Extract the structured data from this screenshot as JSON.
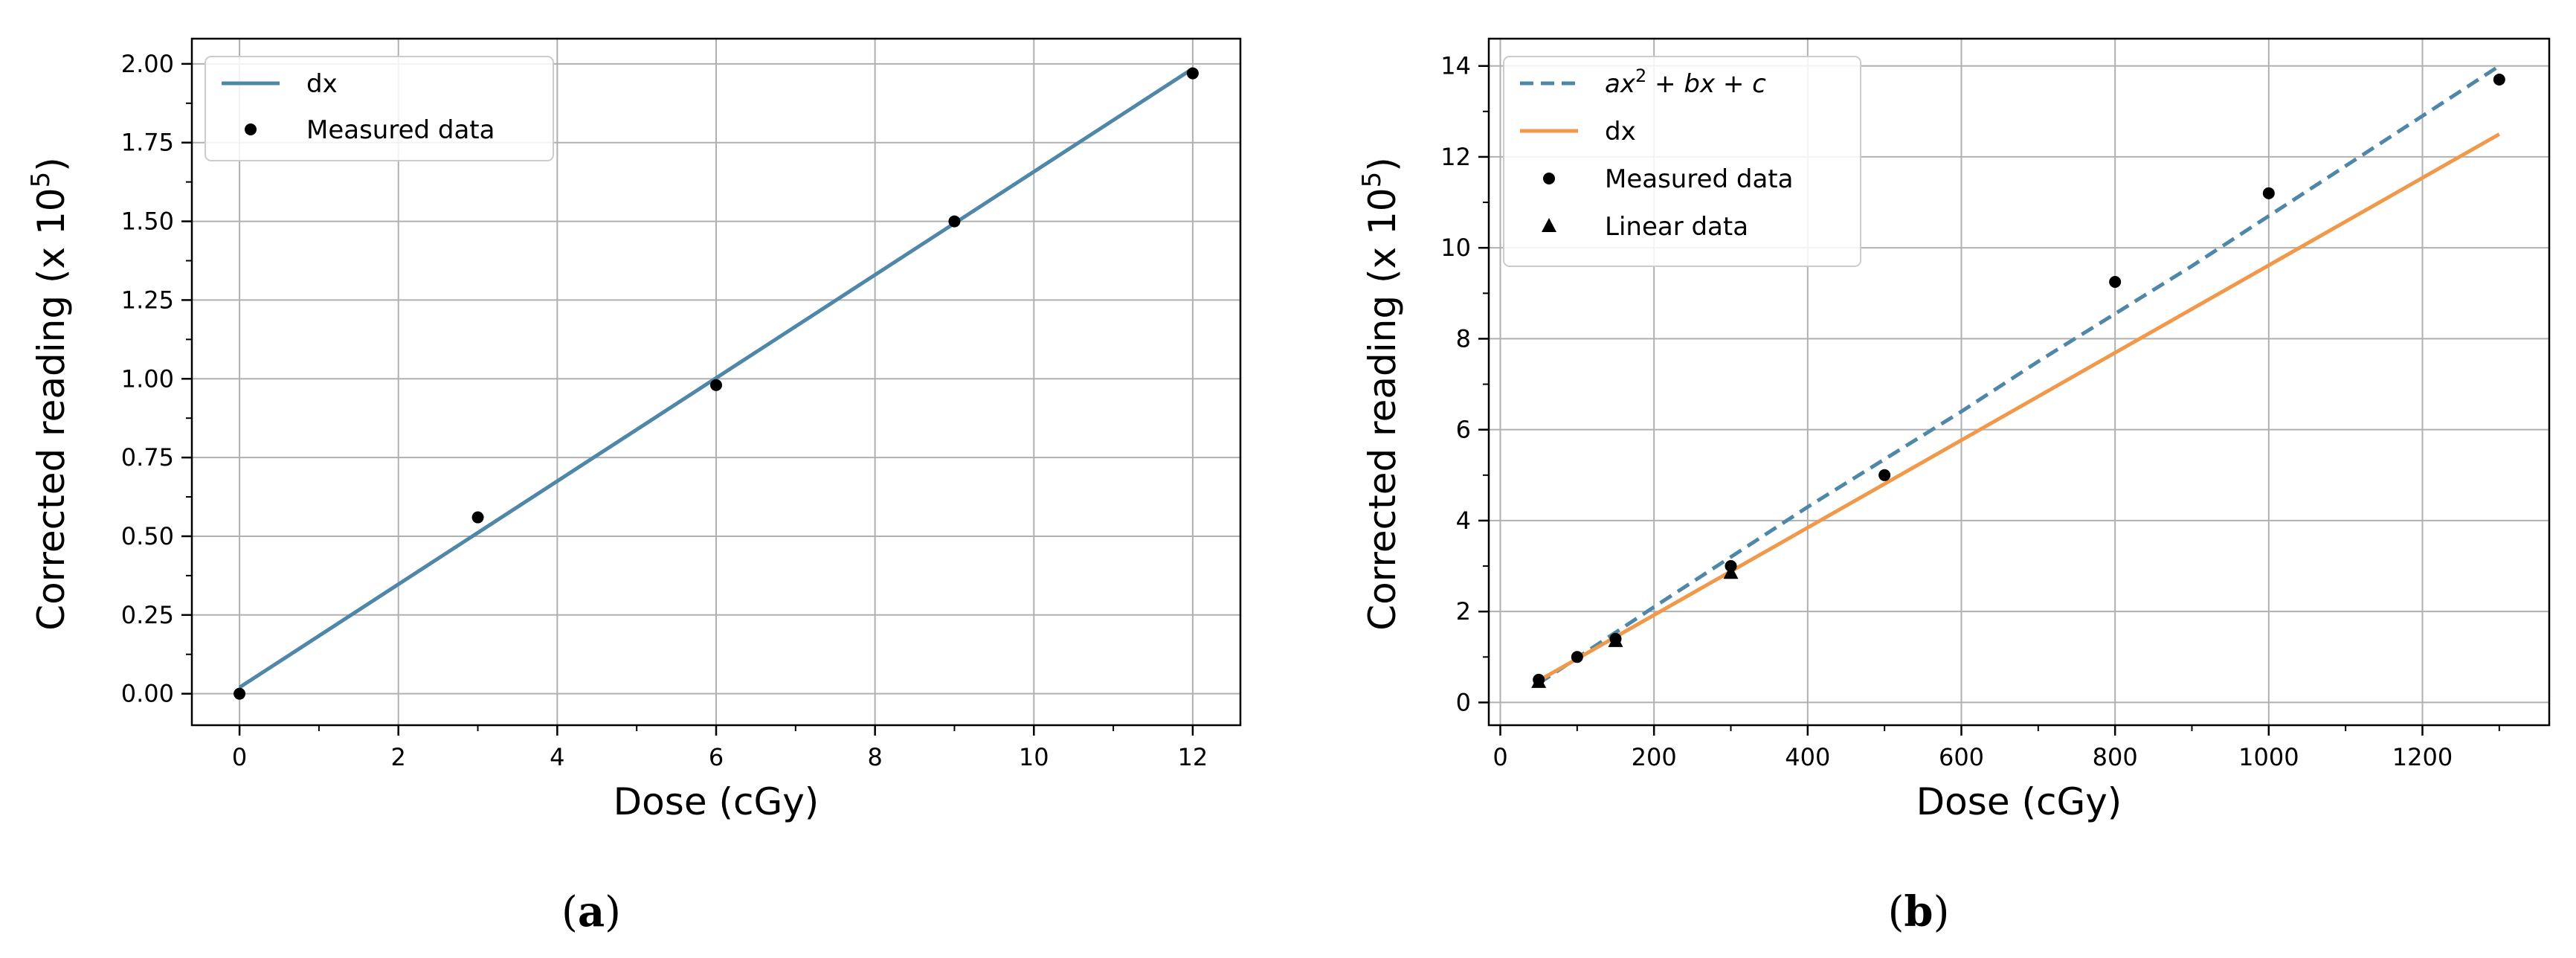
{
  "chart_data": [
    {
      "panel": "(a)",
      "type": "scatter",
      "xlabel": "Dose (cGy)",
      "ylabel": "Corrected reading (x 10",
      "ylabel_exp": "5",
      "ylabel_close": ")",
      "xlim": [
        -0.6,
        12.6
      ],
      "ylim": [
        -0.1,
        2.08
      ],
      "xticks": [
        0,
        2,
        4,
        6,
        8,
        10,
        12
      ],
      "xtick_labels": [
        "0",
        "2",
        "4",
        "6",
        "8",
        "10",
        "12"
      ],
      "yticks": [
        0,
        0.25,
        0.5,
        0.75,
        1.0,
        1.25,
        1.5,
        1.75,
        2.0
      ],
      "ytick_labels": [
        "0.00",
        "0.25",
        "0.50",
        "0.75",
        "1.00",
        "1.25",
        "1.50",
        "1.75",
        "2.00"
      ],
      "grid": true,
      "legend_position": "top-left",
      "series": [
        {
          "name": "dx",
          "kind": "line",
          "style": "solid",
          "color": "#4f87a8",
          "x": [
            0,
            12
          ],
          "y": [
            0.02,
            1.985
          ]
        },
        {
          "name": "Measured data",
          "kind": "points",
          "marker": "circle",
          "color": "#000000",
          "x": [
            0,
            3,
            6,
            9,
            12
          ],
          "y": [
            0.0,
            0.56,
            0.98,
            1.5,
            1.97
          ]
        }
      ]
    },
    {
      "panel": "(b)",
      "type": "scatter",
      "xlabel": "Dose (cGy)",
      "ylabel": "Corrected reading (x 10",
      "ylabel_exp": "5",
      "ylabel_close": ")",
      "xlim": [
        -15,
        1365
      ],
      "ylim": [
        -0.5,
        14.6
      ],
      "xticks": [
        0,
        200,
        400,
        600,
        800,
        1000,
        1200
      ],
      "xtick_labels": [
        "0",
        "200",
        "400",
        "600",
        "800",
        "1000",
        "1200"
      ],
      "yticks": [
        0,
        2,
        4,
        6,
        8,
        10,
        12,
        14
      ],
      "ytick_labels": [
        "0",
        "2",
        "4",
        "6",
        "8",
        "10",
        "12",
        "14"
      ],
      "grid": true,
      "legend_position": "top-left",
      "series": [
        {
          "name": "ax² + bx + c",
          "legend_italic_parts": [
            "ax",
            "2",
            " + ",
            "bx",
            " + ",
            "c"
          ],
          "kind": "line",
          "style": "dashed",
          "color": "#4f87a8",
          "x": [
            50,
            100,
            200,
            300,
            400,
            500,
            600,
            700,
            800,
            900,
            1000,
            1100,
            1200,
            1300
          ],
          "y": [
            0.42,
            0.98,
            2.1,
            3.2,
            4.3,
            5.35,
            6.4,
            7.5,
            8.55,
            9.6,
            10.7,
            11.8,
            12.9,
            14.0
          ]
        },
        {
          "name": "dx",
          "kind": "line",
          "style": "solid",
          "color": "#f0994a",
          "x": [
            50,
            1300
          ],
          "y": [
            0.48,
            12.5
          ]
        },
        {
          "name": "Measured data",
          "kind": "points",
          "marker": "circle",
          "color": "#000000",
          "x": [
            50,
            100,
            150,
            300,
            500,
            800,
            1000,
            1300
          ],
          "y": [
            0.5,
            1.0,
            1.4,
            3.0,
            5.0,
            9.25,
            11.2,
            13.7
          ]
        },
        {
          "name": "Linear data",
          "kind": "points",
          "marker": "triangle",
          "color": "#000000",
          "x": [
            50,
            150,
            300
          ],
          "y": [
            0.45,
            1.35,
            2.85
          ]
        }
      ]
    }
  ]
}
